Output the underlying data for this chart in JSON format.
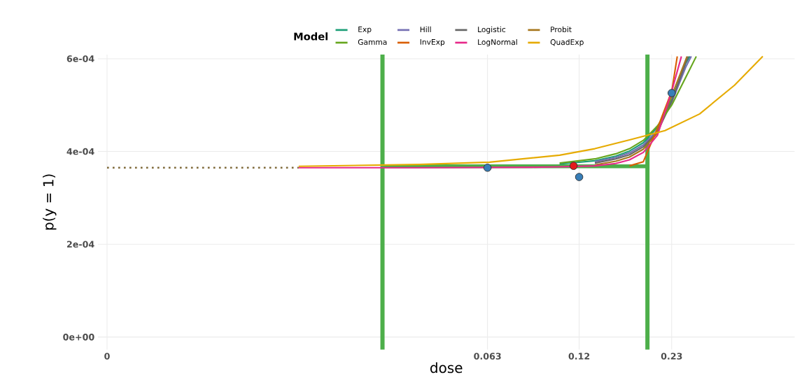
{
  "chart_data": {
    "type": "line",
    "xlabel": "dose",
    "ylabel": "p(y = 1)",
    "legend_title": "Model",
    "legend": "top",
    "grid": true,
    "log": "x",
    "xlim": [
      0.00407,
      0.546
    ],
    "ylim": [
      -2.7e-05,
      0.000609
    ],
    "xticks": [
      {
        "value": 0.00434,
        "label": "0"
      },
      0.063,
      0.12,
      0.23
    ],
    "yticks": [
      {
        "value": 0,
        "label": "0e+00"
      },
      {
        "value": 0.0002,
        "label": "2e-04"
      },
      {
        "value": 0.0004,
        "label": "4e-04"
      },
      {
        "value": 0.0006,
        "label": "6e-04"
      }
    ],
    "ref_lines": [
      {
        "axis": "x",
        "value": 0.0301,
        "color": "#4daf4a"
      },
      {
        "axis": "x",
        "value": 0.194,
        "color": "#4daf4a"
      }
    ],
    "series": [
      {
        "name": "Exp",
        "color": "#1b9e77",
        "x": [
          0.1046,
          0.134,
          0.1552,
          0.171,
          0.1885,
          0.2081,
          0.2301,
          0.254,
          0.2615
        ],
        "values": [
          0.000373,
          0.00038,
          0.00039,
          0.000401,
          0.000419,
          0.000452,
          0.000512,
          0.00059,
          0.000605
        ]
      },
      {
        "name": "Hill",
        "color": "#7570b3",
        "x": [
          0.134,
          0.1552,
          0.171,
          0.1885,
          0.2081,
          0.2301,
          0.254,
          0.264
        ],
        "values": [
          0.000378,
          0.000387,
          0.000397,
          0.000414,
          0.000446,
          0.000506,
          0.000582,
          0.000605
        ]
      },
      {
        "name": "Logistic",
        "color": "#666666",
        "x": [
          0.134,
          0.1552,
          0.171,
          0.1885,
          0.2081,
          0.2301,
          0.254,
          0.2587
        ],
        "values": [
          0.000375,
          0.000384,
          0.000393,
          0.00041,
          0.000442,
          0.000508,
          0.000592,
          0.000605
        ]
      },
      {
        "name": "Probit",
        "color": "#a6761d",
        "x": [
          0.134,
          0.1552,
          0.171,
          0.1885,
          0.2081,
          0.2301,
          0.2563
        ],
        "values": [
          0.000371,
          0.000379,
          0.000388,
          0.000405,
          0.00044,
          0.00052,
          0.000605
        ]
      },
      {
        "name": "Gamma",
        "color": "#66a61e",
        "x": [
          0.1046,
          0.134,
          0.1552,
          0.171,
          0.1885,
          0.2081,
          0.2301,
          0.254,
          0.2734
        ],
        "values": [
          0.000375,
          0.000384,
          0.000395,
          0.000406,
          0.000424,
          0.000455,
          0.0005,
          0.00056,
          0.000605
        ]
      },
      {
        "name": "InvExp",
        "color": "#d95f02",
        "x": [
          0.171,
          0.1885,
          0.2081,
          0.2301,
          0.2392
        ],
        "values": [
          0.000369,
          0.000378,
          0.00045,
          0.00053,
          0.000605
        ]
      },
      {
        "name": "LogNormal",
        "color": "#e7298a",
        "x": [
          0.0167,
          0.039,
          0.086,
          0.1046,
          0.134,
          0.1552,
          0.171,
          0.1885,
          0.2081,
          0.2301,
          0.2463
        ],
        "values": [
          0.000365,
          0.000365,
          0.000366,
          0.000367,
          0.000369,
          0.000374,
          0.000382,
          0.000398,
          0.000435,
          0.00053,
          0.000605
        ]
      },
      {
        "name": "QuadExp",
        "color": "#e6ab02",
        "x": [
          0.0167,
          0.039,
          0.0639,
          0.1046,
          0.134,
          0.171,
          0.2193,
          0.28,
          0.358,
          0.4365
        ],
        "values": [
          0.000368,
          0.000372,
          0.000377,
          0.000392,
          0.000406,
          0.000425,
          0.000445,
          0.000481,
          0.000543,
          0.000605
        ]
      },
      {
        "color": "#7f6a3a",
        "line_style": "dotted",
        "x": [
          0.00434,
          0.0167
        ],
        "values": [
          0.000365,
          0.000365
        ]
      },
      {
        "color": "#4daf4a",
        "x": [
          0.0301,
          0.194
        ],
        "values": [
          0.000368,
          0.000368
        ]
      },
      {
        "type": "scatter",
        "color": "#377eb8",
        "marker": "circle",
        "x": [
          0.063,
          0.12,
          0.23
        ],
        "values": [
          0.000365,
          0.000345,
          0.000526
        ]
      },
      {
        "type": "scatter",
        "color": "#e41a1c",
        "marker": "circle",
        "x": [
          0.1154
        ],
        "values": [
          0.000369
        ]
      }
    ]
  }
}
